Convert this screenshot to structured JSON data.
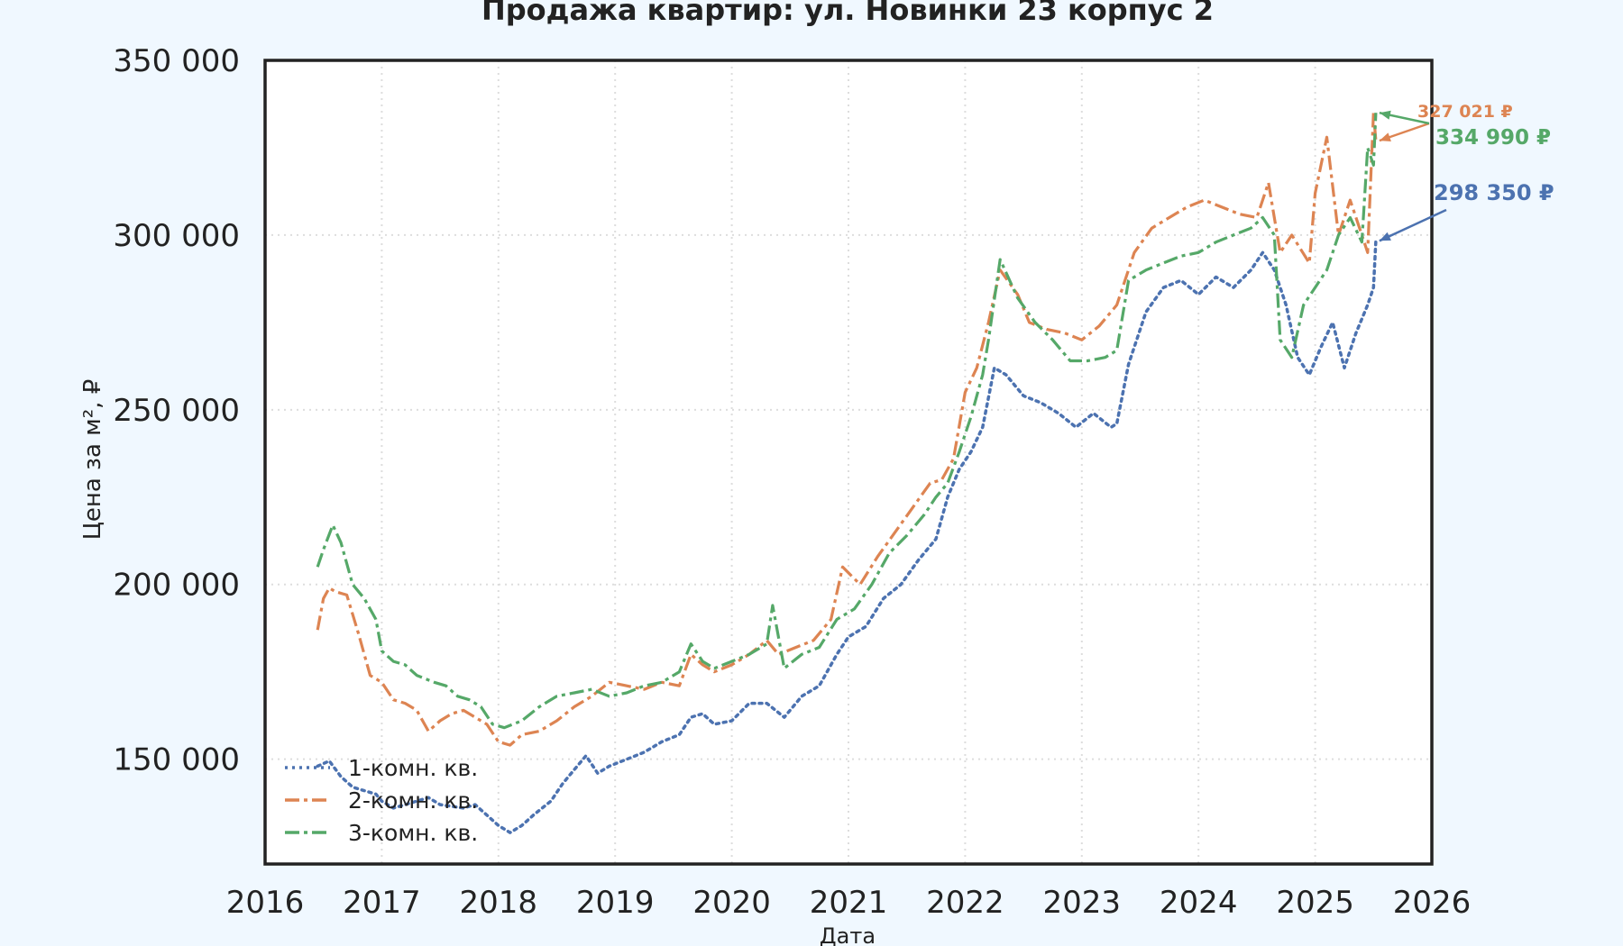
{
  "chart_data": {
    "type": "line",
    "title": "Продажа квартир: ул. Новинки 23 корпус 2",
    "xlabel": "Дата",
    "ylabel": "Цена за м², ₽",
    "xlim": [
      2016,
      2026
    ],
    "ylim": [
      120000,
      350000
    ],
    "xticks": [
      2016,
      2017,
      2018,
      2019,
      2020,
      2021,
      2022,
      2023,
      2024,
      2025,
      2026
    ],
    "xtick_labels": [
      "2016",
      "2017",
      "2018",
      "2019",
      "2020",
      "2021",
      "2022",
      "2023",
      "2024",
      "2025",
      "2026"
    ],
    "yticks": [
      150000,
      200000,
      250000,
      300000,
      350000
    ],
    "ytick_labels": [
      "150 000",
      "200 000",
      "250 000",
      "300 000",
      "350 000"
    ],
    "grid": true,
    "legend_position": "bottom-left",
    "series": [
      {
        "name": "1-комн. кв.",
        "color": "#4c72b0",
        "style": "dotted",
        "x": [
          2016.45,
          2016.55,
          2016.65,
          2016.75,
          2016.85,
          2016.95,
          2017.0,
          2017.1,
          2017.2,
          2017.3,
          2017.4,
          2017.5,
          2017.6,
          2017.7,
          2017.8,
          2017.9,
          2018.0,
          2018.1,
          2018.2,
          2018.3,
          2018.45,
          2018.55,
          2018.65,
          2018.75,
          2018.85,
          2018.95,
          2019.1,
          2019.25,
          2019.4,
          2019.55,
          2019.65,
          2019.75,
          2019.85,
          2020.0,
          2020.15,
          2020.3,
          2020.45,
          2020.6,
          2020.75,
          2020.9,
          2021.0,
          2021.15,
          2021.3,
          2021.45,
          2021.6,
          2021.75,
          2021.85,
          2021.95,
          2022.05,
          2022.15,
          2022.25,
          2022.35,
          2022.5,
          2022.65,
          2022.8,
          2022.95,
          2023.1,
          2023.25,
          2023.3,
          2023.4,
          2023.55,
          2023.7,
          2023.85,
          2024.0,
          2024.15,
          2024.3,
          2024.45,
          2024.55,
          2024.65,
          2024.75,
          2024.85,
          2024.95,
          2025.05,
          2025.15,
          2025.25,
          2025.35,
          2025.45,
          2025.5,
          2025.52
        ],
        "y": [
          148000,
          149500,
          145000,
          142000,
          141000,
          140000,
          138000,
          136000,
          137000,
          138000,
          139000,
          137000,
          136500,
          136000,
          137000,
          134000,
          131000,
          129000,
          131000,
          134000,
          138000,
          143000,
          147000,
          151000,
          146000,
          148000,
          150000,
          152000,
          155000,
          157000,
          162000,
          163000,
          160000,
          161000,
          166000,
          166000,
          162000,
          168000,
          171000,
          180000,
          185000,
          188000,
          196000,
          200000,
          207000,
          213000,
          225000,
          233000,
          238000,
          245000,
          262000,
          260000,
          254000,
          252000,
          249000,
          245000,
          249000,
          245000,
          246000,
          263000,
          278000,
          285000,
          287000,
          283000,
          288000,
          285000,
          290000,
          295000,
          290000,
          280000,
          265000,
          260000,
          268000,
          275000,
          262000,
          272000,
          280000,
          285000,
          298350
        ]
      },
      {
        "name": "2-комн. кв.",
        "color": "#dd8452",
        "style": "dashdot",
        "x": [
          2016.45,
          2016.5,
          2016.55,
          2016.6,
          2016.7,
          2016.8,
          2016.9,
          2017.0,
          2017.1,
          2017.2,
          2017.3,
          2017.4,
          2017.5,
          2017.6,
          2017.7,
          2017.8,
          2017.9,
          2018.0,
          2018.1,
          2018.2,
          2018.35,
          2018.5,
          2018.65,
          2018.8,
          2018.95,
          2019.1,
          2019.25,
          2019.4,
          2019.55,
          2019.65,
          2019.75,
          2019.85,
          2020.0,
          2020.15,
          2020.3,
          2020.4,
          2020.55,
          2020.7,
          2020.85,
          2020.95,
          2021.1,
          2021.25,
          2021.4,
          2021.55,
          2021.7,
          2021.8,
          2021.9,
          2022.0,
          2022.1,
          2022.2,
          2022.3,
          2022.45,
          2022.55,
          2022.7,
          2022.85,
          2023.0,
          2023.15,
          2023.3,
          2023.45,
          2023.6,
          2023.75,
          2023.9,
          2024.05,
          2024.2,
          2024.35,
          2024.5,
          2024.6,
          2024.7,
          2024.8,
          2024.95,
          2025.0,
          2025.1,
          2025.2,
          2025.3,
          2025.4,
          2025.45,
          2025.5,
          2025.52
        ],
        "y": [
          187000,
          196000,
          199000,
          198000,
          197000,
          186000,
          174000,
          172000,
          167000,
          166000,
          164000,
          158000,
          161000,
          163000,
          164000,
          162000,
          160000,
          155000,
          154000,
          157000,
          158000,
          161000,
          165000,
          168000,
          172000,
          171000,
          170000,
          172000,
          171000,
          180000,
          177000,
          175000,
          177000,
          180000,
          184000,
          180000,
          182000,
          184000,
          190000,
          205000,
          200000,
          208000,
          215000,
          222000,
          229000,
          230000,
          236000,
          255000,
          262000,
          275000,
          290000,
          283000,
          275000,
          273000,
          272000,
          270000,
          274000,
          280000,
          295000,
          302000,
          305000,
          308000,
          310000,
          308000,
          306000,
          305000,
          315000,
          295000,
          300000,
          292000,
          312000,
          328000,
          300000,
          310000,
          300000,
          295000,
          335000,
          327021
        ]
      },
      {
        "name": "3-комн. кв.",
        "color": "#55a868",
        "style": "dashdot",
        "x": [
          2016.45,
          2016.5,
          2016.58,
          2016.65,
          2016.75,
          2016.85,
          2016.95,
          2017.0,
          2017.1,
          2017.2,
          2017.3,
          2017.45,
          2017.55,
          2017.65,
          2017.75,
          2017.85,
          2017.95,
          2018.05,
          2018.2,
          2018.35,
          2018.5,
          2018.65,
          2018.8,
          2018.95,
          2019.1,
          2019.25,
          2019.4,
          2019.55,
          2019.65,
          2019.75,
          2019.85,
          2020.0,
          2020.15,
          2020.3,
          2020.35,
          2020.45,
          2020.6,
          2020.75,
          2020.9,
          2021.05,
          2021.2,
          2021.35,
          2021.5,
          2021.65,
          2021.75,
          2021.85,
          2021.95,
          2022.05,
          2022.15,
          2022.2,
          2022.3,
          2022.45,
          2022.6,
          2022.75,
          2022.9,
          2023.05,
          2023.2,
          2023.3,
          2023.4,
          2023.55,
          2023.7,
          2023.85,
          2024.0,
          2024.15,
          2024.3,
          2024.45,
          2024.55,
          2024.65,
          2024.7,
          2024.8,
          2024.9,
          2025.0,
          2025.1,
          2025.2,
          2025.3,
          2025.4,
          2025.45,
          2025.5,
          2025.52
        ],
        "y": [
          205000,
          210000,
          217000,
          212000,
          200000,
          196000,
          190000,
          181000,
          178000,
          177000,
          174000,
          172000,
          171000,
          168000,
          167000,
          165000,
          160000,
          159000,
          161000,
          165000,
          168000,
          169000,
          170000,
          168000,
          169000,
          171000,
          172000,
          175000,
          183000,
          178000,
          176000,
          178000,
          180000,
          183000,
          194000,
          176000,
          180000,
          182000,
          190000,
          193000,
          200000,
          209000,
          214000,
          220000,
          225000,
          229000,
          238000,
          248000,
          260000,
          270000,
          293000,
          282000,
          275000,
          270000,
          264000,
          264000,
          265000,
          267000,
          287000,
          290000,
          292000,
          294000,
          295000,
          298000,
          300000,
          302000,
          305000,
          300000,
          270000,
          265000,
          280000,
          285000,
          290000,
          300000,
          305000,
          298000,
          325000,
          320000,
          334990
        ]
      }
    ],
    "annotations": [
      {
        "text": "298 350 ₽",
        "color": "#4c72b0",
        "x": 2025.52,
        "y": 298350
      },
      {
        "text": "327 021 ₽",
        "color": "#dd8452",
        "x": 2025.52,
        "y": 327021
      },
      {
        "text": "334 990 ₽",
        "color": "#55a868",
        "x": 2025.52,
        "y": 334990
      }
    ]
  }
}
